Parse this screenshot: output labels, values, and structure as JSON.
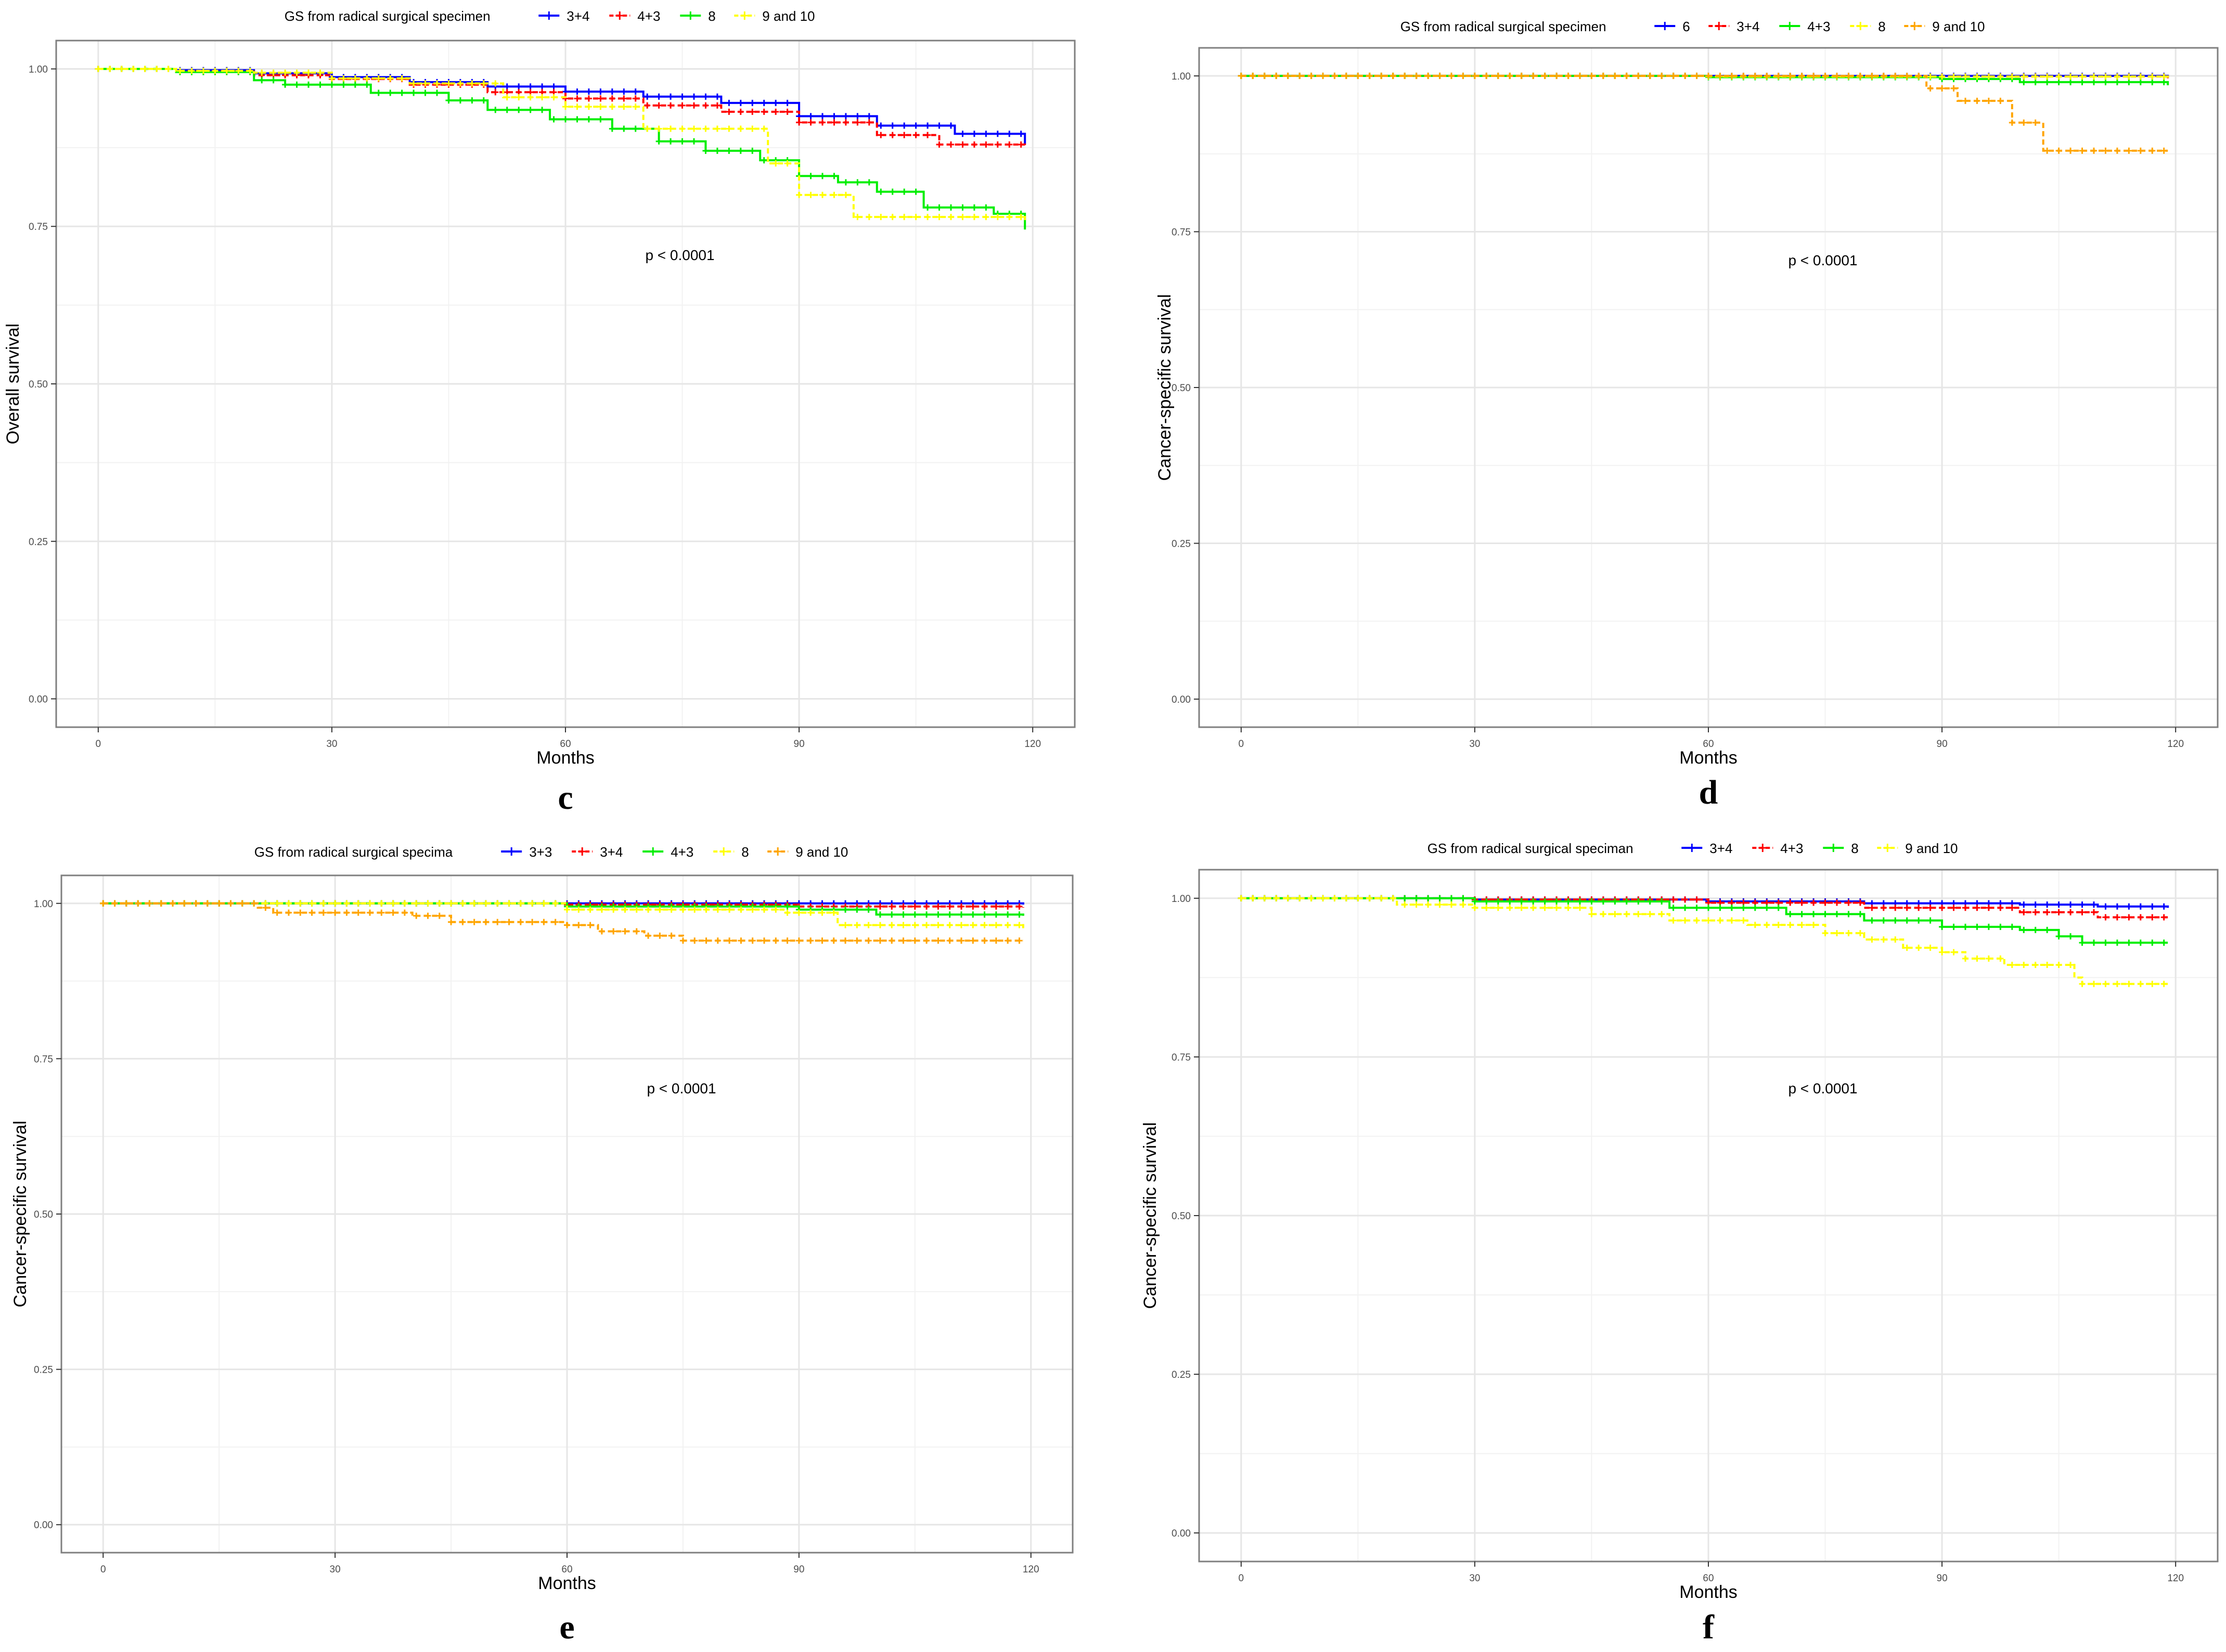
{
  "chart_data": [
    {
      "panel": "c",
      "type": "line",
      "ylabel": "Overall survival",
      "xlabel": "Months",
      "legend_title": "GS from radical surgical specimen",
      "legend_position": "top",
      "annotation": "p < 0.0001",
      "xlim": [
        0,
        120
      ],
      "ylim": [
        0,
        1
      ],
      "xticks": [
        0,
        30,
        60,
        90,
        120
      ],
      "xtick_labels": [
        "0",
        "30",
        "60",
        "90",
        "120"
      ],
      "yticks": [
        0,
        0.25,
        0.5,
        0.75,
        1
      ],
      "ytick_labels": [
        "0.00",
        "0.25",
        "0.50",
        "0.75",
        "1.00"
      ],
      "series": [
        {
          "name": "3+4",
          "color": "#0000ff",
          "dash": false,
          "points": [
            [
              0,
              1.0
            ],
            [
              10,
              0.998
            ],
            [
              20,
              0.993
            ],
            [
              30,
              0.987
            ],
            [
              40,
              0.979
            ],
            [
              50,
              0.972
            ],
            [
              60,
              0.964
            ],
            [
              70,
              0.956
            ],
            [
              80,
              0.946
            ],
            [
              90,
              0.925
            ],
            [
              100,
              0.91
            ],
            [
              110,
              0.897
            ],
            [
              119,
              0.881
            ]
          ]
        },
        {
          "name": "4+3",
          "color": "#ff0000",
          "dash": true,
          "points": [
            [
              0,
              1.0
            ],
            [
              10,
              0.996
            ],
            [
              20,
              0.99
            ],
            [
              30,
              0.984
            ],
            [
              40,
              0.975
            ],
            [
              50,
              0.963
            ],
            [
              60,
              0.953
            ],
            [
              70,
              0.942
            ],
            [
              80,
              0.932
            ],
            [
              90,
              0.915
            ],
            [
              100,
              0.895
            ],
            [
              108,
              0.88
            ],
            [
              119,
              0.879
            ]
          ]
        },
        {
          "name": "8",
          "color": "#00ee00",
          "dash": false,
          "points": [
            [
              0,
              1.0
            ],
            [
              10,
              0.995
            ],
            [
              20,
              0.982
            ],
            [
              24,
              0.975
            ],
            [
              35,
              0.962
            ],
            [
              45,
              0.95
            ],
            [
              50,
              0.935
            ],
            [
              58,
              0.92
            ],
            [
              66,
              0.905
            ],
            [
              72,
              0.885
            ],
            [
              78,
              0.87
            ],
            [
              85,
              0.855
            ],
            [
              90,
              0.83
            ],
            [
              95,
              0.82
            ],
            [
              100,
              0.805
            ],
            [
              106,
              0.78
            ],
            [
              115,
              0.77
            ],
            [
              119,
              0.745
            ]
          ]
        },
        {
          "name": "9 and 10",
          "color": "#ffff00",
          "dash": true,
          "points": [
            [
              0,
              1.0
            ],
            [
              10,
              0.997
            ],
            [
              20,
              0.994
            ],
            [
              30,
              0.985
            ],
            [
              40,
              0.977
            ],
            [
              52,
              0.955
            ],
            [
              60,
              0.94
            ],
            [
              70,
              0.905
            ],
            [
              86,
              0.9
            ],
            [
              86,
              0.85
            ],
            [
              90,
              0.8
            ],
            [
              97,
              0.765
            ],
            [
              110,
              0.765
            ],
            [
              119,
              0.76
            ]
          ]
        }
      ]
    },
    {
      "panel": "d",
      "type": "line",
      "ylabel": "Cancer-specific survival",
      "xlabel": "Months",
      "legend_title": "GS from radical surgical specimen",
      "legend_position": "top",
      "annotation": "p < 0.0001",
      "xlim": [
        0,
        120
      ],
      "ylim": [
        0,
        1
      ],
      "xticks": [
        0,
        30,
        60,
        90,
        120
      ],
      "xtick_labels": [
        "0",
        "30",
        "60",
        "90",
        "120"
      ],
      "yticks": [
        0,
        0.25,
        0.5,
        0.75,
        1
      ],
      "ytick_labels": [
        "0.00",
        "0.25",
        "0.50",
        "0.75",
        "1.00"
      ],
      "series": [
        {
          "name": "6",
          "color": "#0000ff",
          "dash": false,
          "points": [
            [
              0,
              1.0
            ],
            [
              119,
              0.999
            ]
          ]
        },
        {
          "name": "3+4",
          "color": "#ff0000",
          "dash": true,
          "points": [
            [
              0,
              1.0
            ],
            [
              60,
              0.999
            ],
            [
              119,
              0.995
            ]
          ]
        },
        {
          "name": "4+3",
          "color": "#00ee00",
          "dash": false,
          "points": [
            [
              0,
              1.0
            ],
            [
              60,
              0.998
            ],
            [
              90,
              0.995
            ],
            [
              100,
              0.99
            ],
            [
              119,
              0.985
            ]
          ]
        },
        {
          "name": "8",
          "color": "#ffff00",
          "dash": true,
          "points": [
            [
              0,
              1.0
            ],
            [
              60,
              0.999
            ],
            [
              119,
              0.997
            ]
          ]
        },
        {
          "name": "9 and 10",
          "color": "#ffa500",
          "dash": true,
          "points": [
            [
              0,
              1.0
            ],
            [
              88,
              0.998
            ],
            [
              88,
              0.98
            ],
            [
              92,
              0.96
            ],
            [
              99,
              0.96
            ],
            [
              99,
              0.925
            ],
            [
              103,
              0.925
            ],
            [
              103,
              0.88
            ],
            [
              119,
              0.88
            ]
          ]
        }
      ]
    },
    {
      "panel": "e",
      "type": "line",
      "ylabel": "Cancer-specific survival",
      "xlabel": "Months",
      "legend_title": "GS from radical surgical specima",
      "legend_position": "top",
      "annotation": "p < 0.0001",
      "xlim": [
        0,
        120
      ],
      "ylim": [
        0,
        1
      ],
      "xticks": [
        0,
        30,
        60,
        90,
        120
      ],
      "xtick_labels": [
        "0",
        "30",
        "60",
        "90",
        "120"
      ],
      "yticks": [
        0,
        0.25,
        0.5,
        0.75,
        1
      ],
      "ytick_labels": [
        "0.00",
        "0.25",
        "0.50",
        "0.75",
        "1.00"
      ],
      "series": [
        {
          "name": "3+3",
          "color": "#0000ff",
          "dash": false,
          "points": [
            [
              0,
              1.0
            ],
            [
              119,
              0.998
            ]
          ]
        },
        {
          "name": "3+4",
          "color": "#ff0000",
          "dash": true,
          "points": [
            [
              0,
              1.0
            ],
            [
              60,
              0.998
            ],
            [
              90,
              0.995
            ],
            [
              119,
              0.993
            ]
          ]
        },
        {
          "name": "4+3",
          "color": "#00ee00",
          "dash": false,
          "points": [
            [
              0,
              1.0
            ],
            [
              60,
              0.995
            ],
            [
              90,
              0.99
            ],
            [
              100,
              0.982
            ],
            [
              119,
              0.98
            ]
          ]
        },
        {
          "name": "8",
          "color": "#ffff00",
          "dash": true,
          "points": [
            [
              0,
              1.0
            ],
            [
              60,
              0.99
            ],
            [
              88,
              0.985
            ],
            [
              95,
              0.965
            ],
            [
              119,
              0.96
            ]
          ]
        },
        {
          "name": "9 and 10",
          "color": "#ffa500",
          "dash": true,
          "points": [
            [
              0,
              1.0
            ],
            [
              20,
              0.993
            ],
            [
              22,
              0.985
            ],
            [
              40,
              0.98
            ],
            [
              45,
              0.97
            ],
            [
              60,
              0.965
            ],
            [
              64,
              0.955
            ],
            [
              70,
              0.948
            ],
            [
              75,
              0.94
            ],
            [
              119,
              0.94
            ]
          ]
        }
      ]
    },
    {
      "panel": "f",
      "type": "line",
      "ylabel": "Cancer-specific survival",
      "xlabel": "Months",
      "legend_title": "GS from radical surgical speciman",
      "legend_position": "top",
      "annotation": "p < 0.0001",
      "xlim": [
        0,
        120
      ],
      "ylim": [
        0,
        1
      ],
      "xticks": [
        0,
        30,
        60,
        90,
        120
      ],
      "xtick_labels": [
        "0",
        "30",
        "60",
        "90",
        "120"
      ],
      "yticks": [
        0,
        0.25,
        0.5,
        0.75,
        1
      ],
      "ytick_labels": [
        "0.00",
        "0.25",
        "0.50",
        "0.75",
        "1.00"
      ],
      "series": [
        {
          "name": "3+4",
          "color": "#0000ff",
          "dash": false,
          "points": [
            [
              0,
              1.0
            ],
            [
              30,
              0.998
            ],
            [
              60,
              0.995
            ],
            [
              80,
              0.992
            ],
            [
              100,
              0.99
            ],
            [
              110,
              0.987
            ],
            [
              119,
              0.985
            ]
          ]
        },
        {
          "name": "4+3",
          "color": "#ff0000",
          "dash": true,
          "points": [
            [
              0,
              1.0
            ],
            [
              30,
              0.998
            ],
            [
              60,
              0.993
            ],
            [
              80,
              0.985
            ],
            [
              100,
              0.978
            ],
            [
              110,
              0.97
            ],
            [
              119,
              0.97
            ]
          ]
        },
        {
          "name": "8",
          "color": "#00ee00",
          "dash": false,
          "points": [
            [
              0,
              1.0
            ],
            [
              30,
              0.995
            ],
            [
              55,
              0.985
            ],
            [
              70,
              0.975
            ],
            [
              80,
              0.965
            ],
            [
              90,
              0.955
            ],
            [
              100,
              0.95
            ],
            [
              105,
              0.94
            ],
            [
              108,
              0.93
            ],
            [
              119,
              0.93
            ]
          ]
        },
        {
          "name": "9 and 10",
          "color": "#ffff00",
          "dash": true,
          "points": [
            [
              0,
              1.0
            ],
            [
              20,
              0.99
            ],
            [
              30,
              0.985
            ],
            [
              45,
              0.975
            ],
            [
              55,
              0.965
            ],
            [
              65,
              0.958
            ],
            [
              75,
              0.945
            ],
            [
              80,
              0.935
            ],
            [
              85,
              0.922
            ],
            [
              90,
              0.915
            ],
            [
              93,
              0.905
            ],
            [
              98,
              0.895
            ],
            [
              105,
              0.895
            ],
            [
              107,
              0.875
            ],
            [
              108,
              0.865
            ],
            [
              119,
              0.865
            ]
          ]
        }
      ]
    }
  ]
}
